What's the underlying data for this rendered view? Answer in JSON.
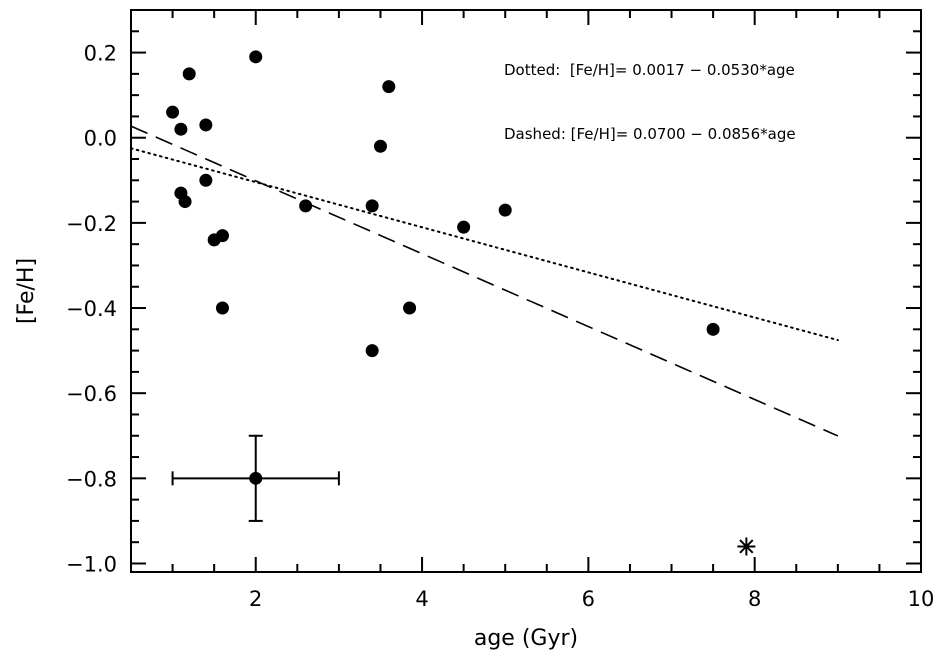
{
  "chart_data": {
    "type": "scatter",
    "title": "",
    "xlabel": "age (Gyr)",
    "ylabel": "[Fe/H]",
    "xlim": [
      0.5,
      10
    ],
    "ylim": [
      -1.02,
      0.3
    ],
    "xticks": [
      2,
      4,
      6,
      8,
      10
    ],
    "xtick_labels": [
      "2",
      "4",
      "6",
      "8",
      "10"
    ],
    "yticks": [
      0.2,
      0.0,
      -0.2,
      -0.4,
      -0.6,
      -0.8,
      -1.0
    ],
    "ytick_labels": [
      "0.2",
      "0.0",
      "−0.2",
      "−0.4",
      "−0.6",
      "−0.8",
      "−1.0"
    ],
    "grid": false,
    "series": [
      {
        "marker": "filled-circle",
        "points": [
          {
            "x": 1.0,
            "y": 0.06
          },
          {
            "x": 1.1,
            "y": 0.02
          },
          {
            "x": 1.2,
            "y": 0.15
          },
          {
            "x": 1.1,
            "y": -0.13
          },
          {
            "x": 1.15,
            "y": -0.15
          },
          {
            "x": 1.4,
            "y": 0.03
          },
          {
            "x": 1.4,
            "y": -0.1
          },
          {
            "x": 1.5,
            "y": -0.24
          },
          {
            "x": 1.6,
            "y": -0.23
          },
          {
            "x": 1.6,
            "y": -0.4
          },
          {
            "x": 2.0,
            "y": 0.19
          },
          {
            "x": 2.6,
            "y": -0.16
          },
          {
            "x": 3.4,
            "y": -0.16
          },
          {
            "x": 3.5,
            "y": -0.02
          },
          {
            "x": 3.6,
            "y": 0.12
          },
          {
            "x": 3.4,
            "y": -0.5
          },
          {
            "x": 3.85,
            "y": -0.4
          },
          {
            "x": 4.5,
            "y": -0.21
          },
          {
            "x": 5.0,
            "y": -0.17
          },
          {
            "x": 7.5,
            "y": -0.45
          }
        ]
      },
      {
        "marker": "asterisk",
        "points": [
          {
            "x": 7.9,
            "y": -0.96
          }
        ]
      }
    ],
    "error_bar_example": {
      "x": 2.0,
      "y": -0.8,
      "xerr": 1.0,
      "yerr": 0.1
    },
    "fits": [
      {
        "style": "dotted",
        "intercept": 0.0017,
        "slope": -0.053,
        "x_range": [
          0.5,
          9.0
        ]
      },
      {
        "style": "dashed",
        "intercept": 0.07,
        "slope": -0.0856,
        "x_range": [
          0.5,
          9.0
        ]
      }
    ],
    "annotations": [
      "Dotted:  [Fe/H]= 0.0017 − 0.0530*age",
      "Dashed: [Fe/H]= 0.0700 − 0.0856*age"
    ]
  }
}
